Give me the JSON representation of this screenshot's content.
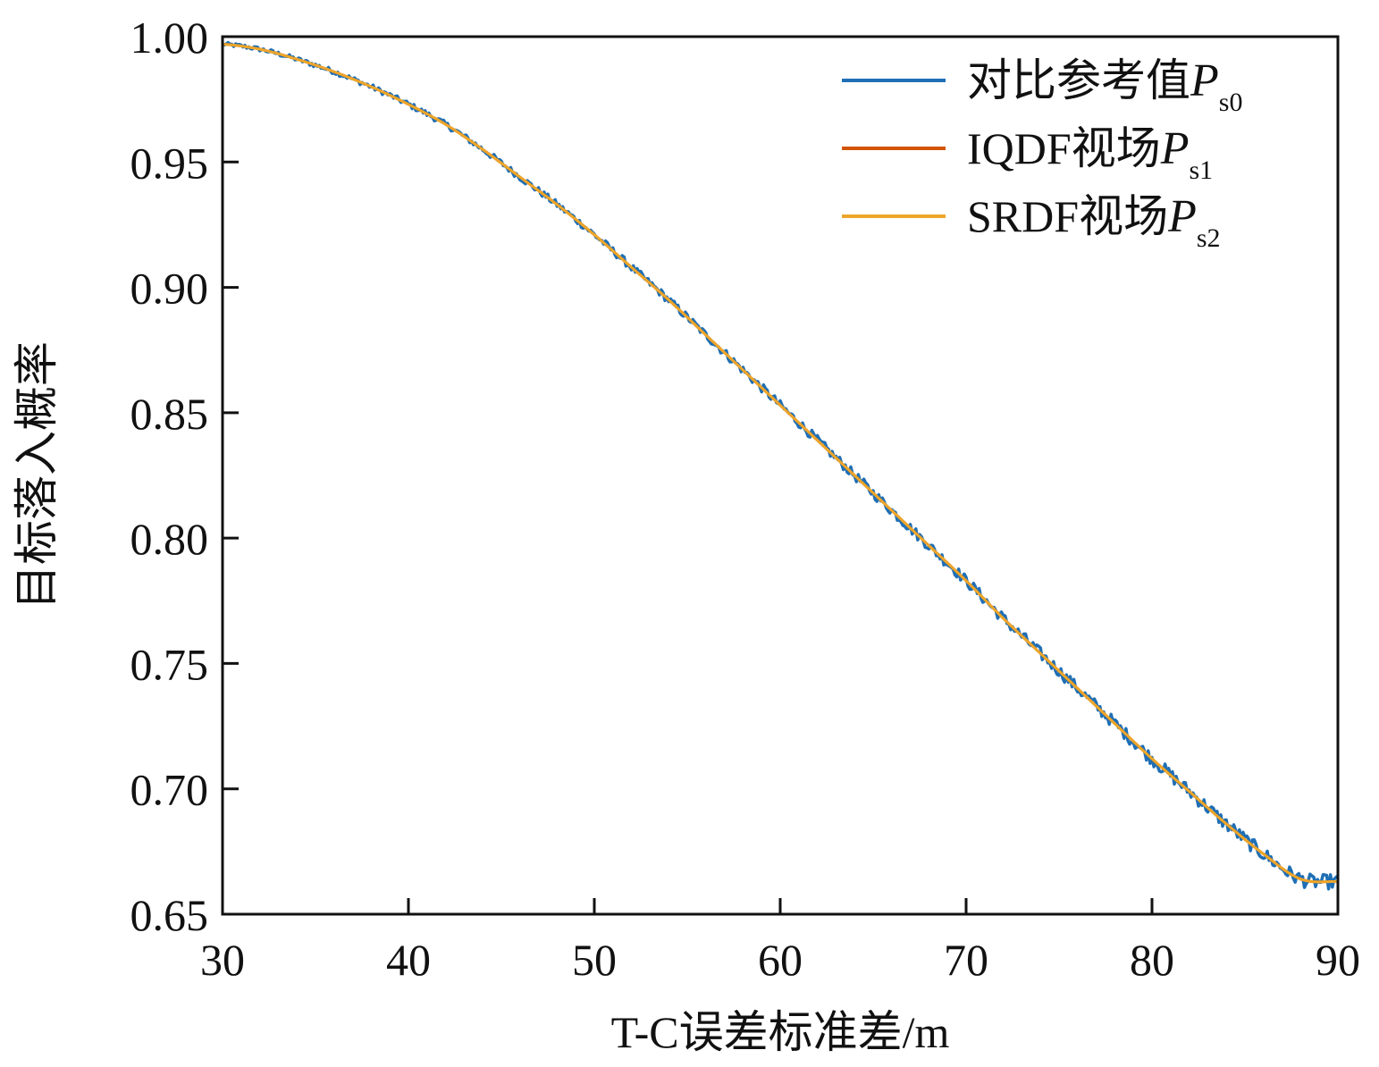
{
  "chart_data": {
    "type": "line",
    "title": "",
    "xlabel": "T-C误差标准差/m",
    "ylabel": "目标落入概率",
    "xlim": [
      30,
      90
    ],
    "ylim": [
      0.65,
      1.0
    ],
    "x_ticks": [
      "30",
      "40",
      "50",
      "60",
      "70",
      "80",
      "90"
    ],
    "y_ticks": [
      "0.65",
      "0.70",
      "0.75",
      "0.80",
      "0.85",
      "0.90",
      "0.95",
      "1.00"
    ],
    "grid": false,
    "legend_position": "top-right",
    "x": [
      30,
      32,
      34,
      36,
      38,
      40,
      42,
      44,
      46,
      48,
      50,
      52,
      54,
      56,
      58,
      60,
      62,
      64,
      66,
      68,
      70,
      72,
      74,
      76,
      78,
      80,
      82,
      84,
      86,
      88,
      90
    ],
    "series": [
      {
        "name_text": "对比参考值",
        "name_symbol": "P",
        "name_sub": "s0",
        "color": "#1f6fb5",
        "noisy": true,
        "values": [
          0.997,
          0.995,
          0.991,
          0.986,
          0.98,
          0.973,
          0.965,
          0.955,
          0.944,
          0.933,
          0.921,
          0.908,
          0.895,
          0.881,
          0.867,
          0.853,
          0.839,
          0.825,
          0.811,
          0.797,
          0.783,
          0.768,
          0.754,
          0.74,
          0.726,
          0.712,
          0.699,
          0.686,
          0.674,
          0.664,
          0.663
        ]
      },
      {
        "name_text": "IQDF视场",
        "name_symbol": "P",
        "name_sub": "s1",
        "color": "#d35400",
        "noisy": false,
        "values": [
          0.997,
          0.995,
          0.991,
          0.986,
          0.98,
          0.973,
          0.965,
          0.955,
          0.944,
          0.933,
          0.921,
          0.908,
          0.895,
          0.881,
          0.867,
          0.853,
          0.839,
          0.825,
          0.811,
          0.797,
          0.783,
          0.768,
          0.754,
          0.74,
          0.726,
          0.712,
          0.699,
          0.686,
          0.674,
          0.664,
          0.663
        ]
      },
      {
        "name_text": "SRDF视场",
        "name_symbol": "P",
        "name_sub": "s2",
        "color": "#eda62a",
        "noisy": false,
        "values": [
          0.997,
          0.995,
          0.991,
          0.986,
          0.98,
          0.973,
          0.965,
          0.955,
          0.944,
          0.933,
          0.921,
          0.908,
          0.895,
          0.881,
          0.867,
          0.853,
          0.839,
          0.825,
          0.811,
          0.797,
          0.783,
          0.768,
          0.754,
          0.74,
          0.726,
          0.712,
          0.699,
          0.686,
          0.674,
          0.664,
          0.663
        ]
      }
    ]
  }
}
